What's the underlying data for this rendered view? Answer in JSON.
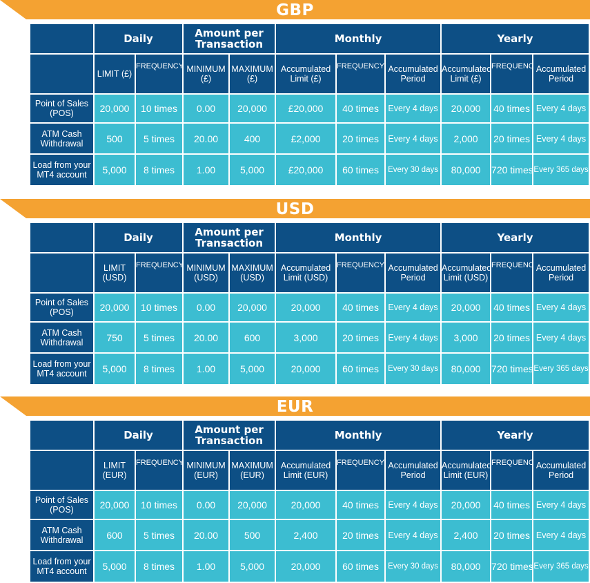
{
  "colors": {
    "banner": "#f4a232",
    "header": "#0d4f85",
    "cell": "#3cbdd1",
    "text": "#ffffff"
  },
  "group_headers": {
    "daily": "Daily",
    "amount_per_transaction": "Amount per Transaction",
    "monthly": "Monthly",
    "yearly": "Yearly"
  },
  "row_labels": [
    "Point of Sales (POS)",
    "ATM Cash Withdrawal",
    "Load from your MT4 account"
  ],
  "tables": [
    {
      "currency": "GBP",
      "sub_headers": [
        "LIMIT (£)",
        "FREQUENCY",
        "MINIMUM (£)",
        "MAXIMUM (£)",
        "Accumulated Limit (£)",
        "FREQUENCY",
        "Accumulated Period",
        "Accumulated Limit (£)",
        "FREQUENCY",
        "Accumulated Period"
      ],
      "rows": [
        [
          "20,000",
          "10 times",
          "0.00",
          "20,000",
          "£20,000",
          "40 times",
          "Every 4 days",
          "20,000",
          "40 times",
          "Every 4 days"
        ],
        [
          "500",
          "5 times",
          "20.00",
          "400",
          "£2,000",
          "20 times",
          "Every 4 days",
          "2,000",
          "20 times",
          "Every 4 days"
        ],
        [
          "5,000",
          "8 times",
          "1.00",
          "5,000",
          "£20,000",
          "60 times",
          "Every 30 days",
          "80,000",
          "720 times",
          "Every 365 days"
        ]
      ]
    },
    {
      "currency": "USD",
      "sub_headers": [
        "LIMIT (USD)",
        "FREQUENCY",
        "MINIMUM (USD)",
        "MAXIMUM (USD)",
        "Accumulated Limit (USD)",
        "FREQUENCY",
        "Accumulated Period",
        "Accumulated Limit (USD)",
        "FREQUENCY",
        "Accumulated Period"
      ],
      "rows": [
        [
          "20,000",
          "10 times",
          "0.00",
          "20,000",
          "20,000",
          "40 times",
          "Every 4 days",
          "20,000",
          "40 times",
          "Every 4 days"
        ],
        [
          "750",
          "5 times",
          "20.00",
          "600",
          "3,000",
          "20 times",
          "Every 4 days",
          "3,000",
          "20 times",
          "Every 4 days"
        ],
        [
          "5,000",
          "8 times",
          "1.00",
          "5,000",
          "20,000",
          "60 times",
          "Every 30 days",
          "80,000",
          "720 times",
          "Every 365 days"
        ]
      ]
    },
    {
      "currency": "EUR",
      "sub_headers": [
        "LIMIT (EUR)",
        "FREQUENCY",
        "MINIMUM (EUR)",
        "MAXIMUM (EUR)",
        "Accumulated Limit (EUR)",
        "FREQUENCY",
        "Accumulated Period",
        "Accumulated Limit (EUR)",
        "FREQUENCY",
        "Accumulated Period"
      ],
      "rows": [
        [
          "20,000",
          "10 times",
          "0.00",
          "20,000",
          "20,000",
          "40 times",
          "Every 4 days",
          "20,000",
          "40 times",
          "Every 4 days"
        ],
        [
          "600",
          "5 times",
          "20.00",
          "500",
          "2,400",
          "20 times",
          "Every 4 days",
          "2,400",
          "20 times",
          "Every 4 days"
        ],
        [
          "5,000",
          "8 times",
          "1.00",
          "5,000",
          "20,000",
          "60 times",
          "Every 30 days",
          "80,000",
          "720 times",
          "Every 365 days"
        ]
      ]
    }
  ]
}
